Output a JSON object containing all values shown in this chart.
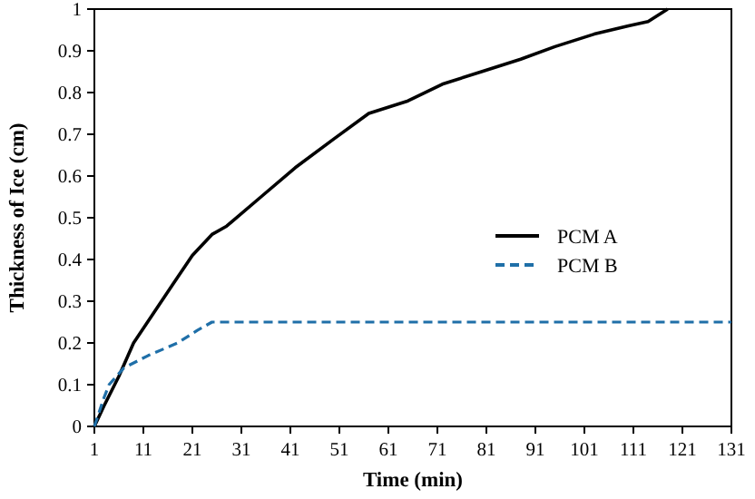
{
  "chart_data": {
    "type": "line",
    "xlabel": "Time (min)",
    "ylabel": "Thickness of Ice (cm)",
    "xlim": [
      1,
      131
    ],
    "ylim": [
      0,
      1
    ],
    "xticks": [
      1,
      11,
      21,
      31,
      41,
      51,
      61,
      71,
      81,
      91,
      101,
      111,
      121,
      131
    ],
    "yticks": [
      0,
      0.1,
      0.2,
      0.3,
      0.4,
      0.5,
      0.6,
      0.7,
      0.8,
      0.9,
      1
    ],
    "grid": false,
    "legend": "right",
    "series": [
      {
        "name": "PCM A",
        "color": "#000000",
        "line_style": "solid",
        "x": [
          1,
          3,
          6,
          9,
          13,
          17,
          21,
          25,
          28,
          35,
          42,
          50,
          57,
          65,
          72,
          80,
          88,
          95,
          103,
          110,
          114,
          118
        ],
        "values": [
          0,
          0.05,
          0.12,
          0.2,
          0.27,
          0.34,
          0.41,
          0.46,
          0.48,
          0.55,
          0.62,
          0.69,
          0.75,
          0.78,
          0.82,
          0.85,
          0.88,
          0.91,
          0.94,
          0.96,
          0.97,
          1.0
        ]
      },
      {
        "name": "PCM B",
        "color": "#1f6fa8",
        "line_style": "dashed",
        "x": [
          1,
          3,
          4,
          7,
          12,
          18,
          22,
          25,
          131
        ],
        "values": [
          0,
          0.07,
          0.1,
          0.14,
          0.17,
          0.2,
          0.23,
          0.25,
          0.25
        ]
      }
    ]
  }
}
